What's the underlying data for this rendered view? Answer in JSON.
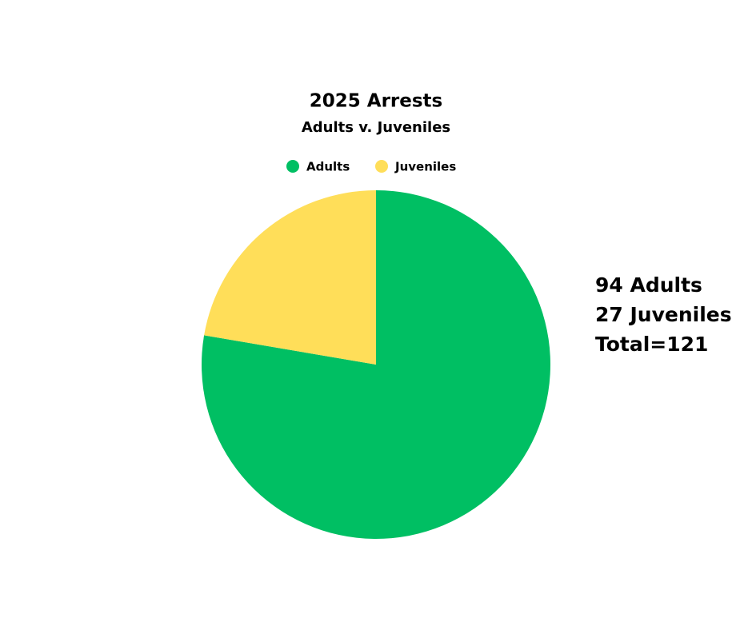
{
  "chart_data": {
    "type": "pie",
    "title": "2025 Arrests",
    "subtitle": "Adults v. Juveniles",
    "categories": [
      "Adults",
      "Juveniles"
    ],
    "values": [
      94,
      27
    ],
    "colors": [
      "#00bf63",
      "#ffde59"
    ],
    "annotations": [
      "94 Adults",
      "27 Juveniles",
      "Total=121"
    ]
  }
}
